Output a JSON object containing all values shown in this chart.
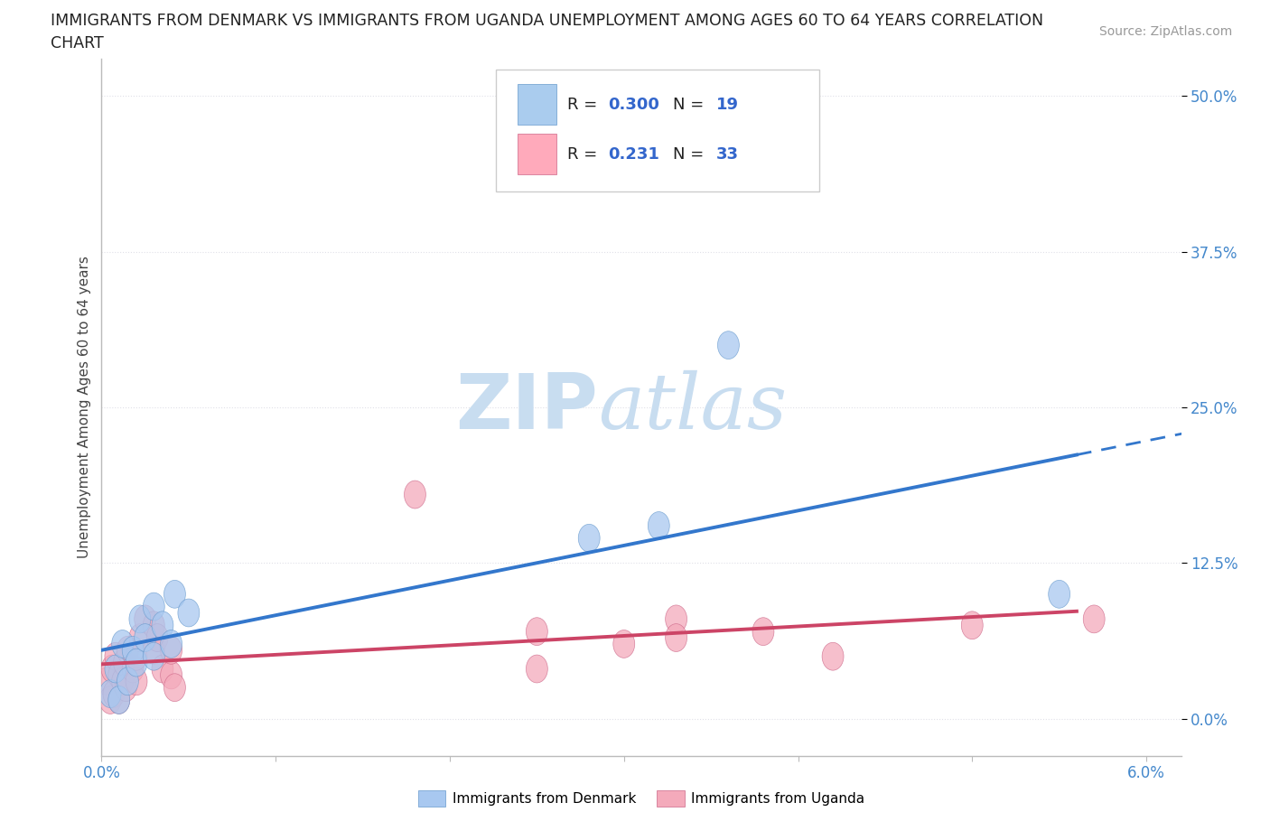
{
  "title_line1": "IMMIGRANTS FROM DENMARK VS IMMIGRANTS FROM UGANDA UNEMPLOYMENT AMONG AGES 60 TO 64 YEARS CORRELATION",
  "title_line2": "CHART",
  "source_text": "Source: ZipAtlas.com",
  "ylabel": "Unemployment Among Ages 60 to 64 years",
  "xlim": [
    0.0,
    0.062
  ],
  "ylim": [
    -0.03,
    0.53
  ],
  "yticks": [
    0.0,
    0.125,
    0.25,
    0.375,
    0.5
  ],
  "ytick_labels": [
    "0.0%",
    "12.5%",
    "25.0%",
    "37.5%",
    "50.0%"
  ],
  "xticks": [
    0.0,
    0.01,
    0.02,
    0.03,
    0.04,
    0.05,
    0.06
  ],
  "xtick_labels": [
    "0.0%",
    "",
    "",
    "",
    "",
    "",
    "6.0%"
  ],
  "blue_fill": "#a8c8f0",
  "blue_edge": "#6699cc",
  "pink_fill": "#f4aabb",
  "pink_edge": "#cc6688",
  "blue_line_color": "#3377cc",
  "pink_line_color": "#cc4466",
  "tick_color": "#4488cc",
  "legend_blue_fill": "#aaccee",
  "legend_pink_fill": "#ffaabb",
  "legend_R_color": "#3366cc",
  "legend_N_color": "#cc3333",
  "denmark_R": 0.3,
  "denmark_N": 19,
  "uganda_R": 0.231,
  "uganda_N": 33,
  "denmark_points": [
    [
      0.0005,
      0.02
    ],
    [
      0.0008,
      0.04
    ],
    [
      0.001,
      0.015
    ],
    [
      0.0012,
      0.06
    ],
    [
      0.0015,
      0.03
    ],
    [
      0.0018,
      0.055
    ],
    [
      0.002,
      0.045
    ],
    [
      0.0022,
      0.08
    ],
    [
      0.0025,
      0.065
    ],
    [
      0.003,
      0.05
    ],
    [
      0.003,
      0.09
    ],
    [
      0.0035,
      0.075
    ],
    [
      0.004,
      0.06
    ],
    [
      0.0042,
      0.1
    ],
    [
      0.005,
      0.085
    ],
    [
      0.028,
      0.145
    ],
    [
      0.032,
      0.155
    ],
    [
      0.036,
      0.3
    ],
    [
      0.055,
      0.1
    ]
  ],
  "uganda_points": [
    [
      0.0003,
      0.03
    ],
    [
      0.0005,
      0.015
    ],
    [
      0.0006,
      0.04
    ],
    [
      0.0007,
      0.02
    ],
    [
      0.0008,
      0.05
    ],
    [
      0.001,
      0.035
    ],
    [
      0.001,
      0.015
    ],
    [
      0.0012,
      0.03
    ],
    [
      0.0013,
      0.045
    ],
    [
      0.0014,
      0.025
    ],
    [
      0.0015,
      0.055
    ],
    [
      0.0018,
      0.04
    ],
    [
      0.002,
      0.03
    ],
    [
      0.002,
      0.05
    ],
    [
      0.0022,
      0.065
    ],
    [
      0.0025,
      0.08
    ],
    [
      0.003,
      0.055
    ],
    [
      0.003,
      0.075
    ],
    [
      0.0032,
      0.065
    ],
    [
      0.0035,
      0.04
    ],
    [
      0.004,
      0.035
    ],
    [
      0.004,
      0.055
    ],
    [
      0.0042,
      0.025
    ],
    [
      0.018,
      0.18
    ],
    [
      0.025,
      0.04
    ],
    [
      0.025,
      0.07
    ],
    [
      0.03,
      0.06
    ],
    [
      0.033,
      0.08
    ],
    [
      0.033,
      0.065
    ],
    [
      0.038,
      0.07
    ],
    [
      0.042,
      0.05
    ],
    [
      0.05,
      0.075
    ],
    [
      0.057,
      0.08
    ]
  ],
  "background_color": "#ffffff",
  "grid_color": "#e0e0e8",
  "watermark_text1": "ZIP",
  "watermark_text2": "atlas",
  "watermark_color": "#c8ddf0"
}
